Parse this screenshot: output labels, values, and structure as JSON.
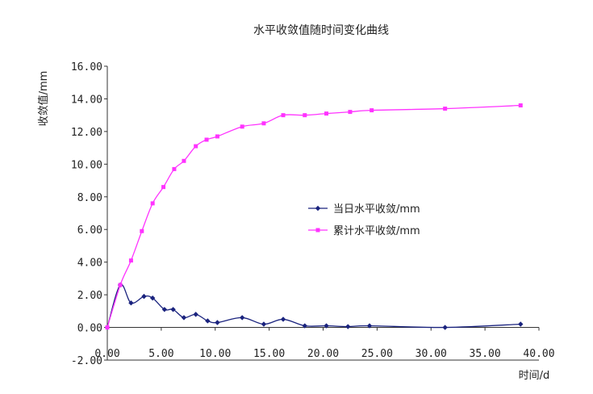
{
  "chart_data": {
    "type": "line",
    "title": "水平收敛值随时间变化曲线",
    "xlabel": "时间/d",
    "ylabel": "收敛值/mm",
    "xlim": [
      0,
      40
    ],
    "ylim": [
      -2,
      16
    ],
    "x_ticks": [
      "0.00",
      "5.00",
      "10.00",
      "15.00",
      "20.00",
      "25.00",
      "30.00",
      "35.00",
      "40.00"
    ],
    "y_ticks": [
      "-2.00",
      "0.00",
      "2.00",
      "4.00",
      "6.00",
      "8.00",
      "10.00",
      "12.00",
      "14.00",
      "16.00"
    ],
    "legend_position": "right-middle",
    "grid": false,
    "series": [
      {
        "name": "当日水平收敛/mm",
        "color": "#1a237e",
        "marker": "diamond",
        "points": [
          [
            0.0,
            0.0
          ],
          [
            1.2,
            2.6
          ],
          [
            2.2,
            1.5
          ],
          [
            3.4,
            1.9
          ],
          [
            4.2,
            1.8
          ],
          [
            5.3,
            1.1
          ],
          [
            6.1,
            1.1
          ],
          [
            7.1,
            0.6
          ],
          [
            8.2,
            0.8
          ],
          [
            9.3,
            0.4
          ],
          [
            10.2,
            0.3
          ],
          [
            12.5,
            0.6
          ],
          [
            14.5,
            0.2
          ],
          [
            16.3,
            0.5
          ],
          [
            18.3,
            0.1
          ],
          [
            20.3,
            0.1
          ],
          [
            22.3,
            0.05
          ],
          [
            24.3,
            0.1
          ],
          [
            31.3,
            0.0
          ],
          [
            38.3,
            0.2
          ]
        ]
      },
      {
        "name": "累计水平收敛/mm",
        "color": "#ff33ff",
        "marker": "square",
        "points": [
          [
            0.0,
            0.0
          ],
          [
            1.2,
            2.6
          ],
          [
            2.2,
            4.1
          ],
          [
            3.2,
            5.9
          ],
          [
            4.2,
            7.6
          ],
          [
            5.2,
            8.6
          ],
          [
            6.2,
            9.7
          ],
          [
            7.1,
            10.2
          ],
          [
            8.2,
            11.1
          ],
          [
            9.2,
            11.5
          ],
          [
            10.2,
            11.7
          ],
          [
            12.5,
            12.3
          ],
          [
            14.5,
            12.5
          ],
          [
            16.3,
            13.0
          ],
          [
            18.3,
            13.0
          ],
          [
            20.3,
            13.1
          ],
          [
            22.5,
            13.2
          ],
          [
            24.5,
            13.3
          ],
          [
            31.3,
            13.4
          ],
          [
            38.3,
            13.6
          ]
        ]
      }
    ]
  }
}
